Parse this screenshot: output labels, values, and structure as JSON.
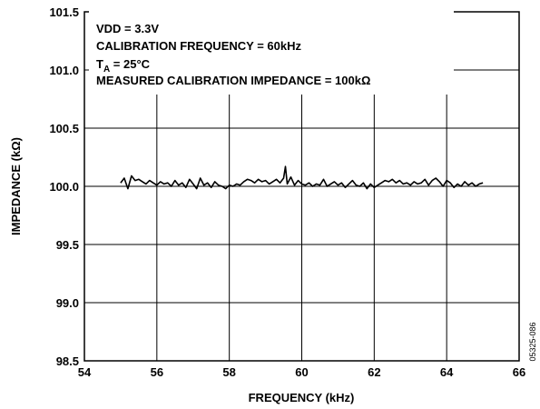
{
  "chart_data": {
    "type": "line",
    "xlabel": "FREQUENCY (kHz)",
    "ylabel": "IMPEDANCE (kΩ)",
    "xlim": [
      54,
      66
    ],
    "ylim": [
      98.5,
      101.5
    ],
    "x_ticks": [
      "54",
      "56",
      "58",
      "60",
      "62",
      "64",
      "66"
    ],
    "y_ticks": [
      "98.5",
      "99.0",
      "99.5",
      "100.0",
      "100.5",
      "101.0",
      "101.5"
    ],
    "grid": true,
    "annotations": {
      "line1": "VDD = 3.3V",
      "line2": "CALIBRATION FREQUENCY = 60kHz",
      "line3_prefix": "T",
      "line3_subscript": "A",
      "line3_suffix": " = 25°C",
      "line4": "MEASURED CALIBRATION IMPEDANCE = 100kΩ"
    },
    "figure_code": "05325-086",
    "series": [
      {
        "color": "#000000",
        "x": [
          55.0,
          55.1,
          55.2,
          55.3,
          55.4,
          55.5,
          55.6,
          55.7,
          55.8,
          55.9,
          56.0,
          56.1,
          56.2,
          56.3,
          56.4,
          56.5,
          56.6,
          56.7,
          56.8,
          56.9,
          57.0,
          57.1,
          57.2,
          57.3,
          57.4,
          57.5,
          57.6,
          57.7,
          57.8,
          57.9,
          58.0,
          58.1,
          58.2,
          58.3,
          58.4,
          58.5,
          58.6,
          58.7,
          58.8,
          58.9,
          59.0,
          59.1,
          59.2,
          59.3,
          59.4,
          59.5,
          59.55,
          59.6,
          59.7,
          59.8,
          59.9,
          60.0,
          60.1,
          60.2,
          60.3,
          60.4,
          60.5,
          60.6,
          60.7,
          60.8,
          60.9,
          61.0,
          61.1,
          61.2,
          61.3,
          61.4,
          61.5,
          61.6,
          61.7,
          61.8,
          61.9,
          62.0,
          62.1,
          62.2,
          62.3,
          62.4,
          62.5,
          62.6,
          62.7,
          62.8,
          62.9,
          63.0,
          63.1,
          63.2,
          63.3,
          63.4,
          63.5,
          63.6,
          63.7,
          63.8,
          63.9,
          64.0,
          64.1,
          64.2,
          64.3,
          64.4,
          64.5,
          64.6,
          64.7,
          64.8,
          64.9,
          65.0
        ],
        "y": [
          100.03,
          100.07,
          99.98,
          100.09,
          100.05,
          100.06,
          100.04,
          100.02,
          100.05,
          100.03,
          100.01,
          100.04,
          100.02,
          100.03,
          100.0,
          100.05,
          100.01,
          100.03,
          99.99,
          100.06,
          100.02,
          99.98,
          100.07,
          100.01,
          100.03,
          99.99,
          100.04,
          100.01,
          100.0,
          99.98,
          100.01,
          100.0,
          100.02,
          100.01,
          100.04,
          100.06,
          100.05,
          100.03,
          100.06,
          100.04,
          100.05,
          100.02,
          100.04,
          100.06,
          100.03,
          100.07,
          100.17,
          100.02,
          100.08,
          100.01,
          100.05,
          100.02,
          100.01,
          100.03,
          100.0,
          100.02,
          100.01,
          100.06,
          100.0,
          100.02,
          100.04,
          100.01,
          100.03,
          99.99,
          100.02,
          100.05,
          100.01,
          100.0,
          100.03,
          99.98,
          100.02,
          99.99,
          100.01,
          100.03,
          100.05,
          100.04,
          100.06,
          100.03,
          100.05,
          100.02,
          100.03,
          100.01,
          100.04,
          100.02,
          100.03,
          100.06,
          100.01,
          100.05,
          100.07,
          100.04,
          100.0,
          100.05,
          100.03,
          99.99,
          100.02,
          100.0,
          100.04,
          100.01,
          100.03,
          100.0,
          100.02,
          100.03
        ]
      }
    ]
  }
}
